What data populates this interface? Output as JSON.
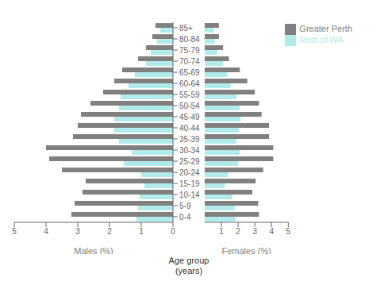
{
  "chart_data": [
    {
      "type": "bar",
      "orientation": "horizontal",
      "xlabel": "Males (%)",
      "ylabel": "Age group\n(years)",
      "categories": [
        "0-4",
        "5-9",
        "10-14",
        "15-19",
        "20-24",
        "25-29",
        "30-34",
        "35-39",
        "40-44",
        "45-49",
        "50-54",
        "55-59",
        "60-64",
        "65-69",
        "70-74",
        "75-79",
        "80-84",
        "85+"
      ],
      "xlim": [
        0,
        5
      ],
      "xticks": [
        0,
        1,
        2,
        3,
        4,
        5
      ],
      "series": [
        {
          "name": "Greater Perth",
          "color": "#808080",
          "values": [
            3.2,
            3.1,
            2.85,
            2.75,
            3.5,
            3.9,
            4.0,
            3.15,
            3.0,
            2.9,
            2.6,
            2.2,
            1.85,
            1.6,
            1.1,
            0.85,
            0.65,
            0.55
          ]
        },
        {
          "name": "Rest of WA",
          "color": "#b2ebeb",
          "values": [
            1.15,
            1.1,
            1.05,
            0.9,
            1.0,
            1.55,
            1.3,
            1.7,
            1.85,
            1.85,
            1.7,
            1.65,
            1.4,
            1.2,
            0.85,
            0.7,
            0.5,
            0.4
          ]
        }
      ]
    },
    {
      "type": "bar",
      "orientation": "horizontal",
      "xlabel": "Females (%)",
      "categories": [
        "0-4",
        "5-9",
        "10-14",
        "15-19",
        "20-24",
        "25-29",
        "30-34",
        "35-39",
        "40-44",
        "45-49",
        "50-54",
        "55-59",
        "60-64",
        "65-69",
        "70-74",
        "75-79",
        "80-84",
        "85+"
      ],
      "xlim": [
        0,
        5
      ],
      "xticks": [
        0,
        1,
        2,
        3,
        4,
        5
      ],
      "legend": "upper right",
      "series": [
        {
          "name": "Greater Perth",
          "color": "#808080",
          "values": [
            3.25,
            3.2,
            2.85,
            3.05,
            3.5,
            4.1,
            4.1,
            3.85,
            3.85,
            3.4,
            3.25,
            3.0,
            2.55,
            2.1,
            1.45,
            1.1,
            0.85,
            0.85
          ]
        },
        {
          "name": "Rest of WA",
          "color": "#b2ebeb",
          "values": [
            1.85,
            1.8,
            1.65,
            1.2,
            1.4,
            2.0,
            2.1,
            1.9,
            2.05,
            2.15,
            2.1,
            1.9,
            1.55,
            1.35,
            1.1,
            0.75,
            0.6,
            0.55
          ]
        }
      ]
    }
  ]
}
